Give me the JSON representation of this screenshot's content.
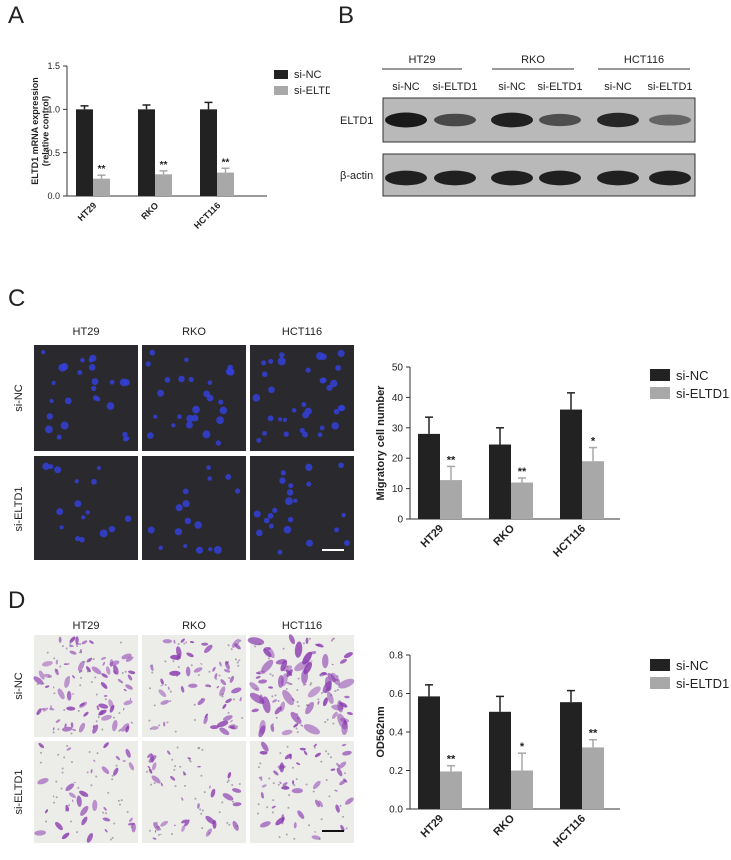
{
  "panels": {
    "A": "A",
    "B": "B",
    "C": "C",
    "D": "D"
  },
  "legend": {
    "si_nc": "si-NC",
    "si_eltd1": "si-ELTD1"
  },
  "colors": {
    "si_nc": "#222222",
    "si_eltd1": "#a8a8a8"
  },
  "blot": {
    "cell_lines": [
      "HT29",
      "RKO",
      "HCT116"
    ],
    "lane_labels": [
      "si-NC",
      "si-ELTD1",
      "si-NC",
      "si-ELTD1",
      "si-NC",
      "si-ELTD1"
    ],
    "row_labels": [
      "ELTD1",
      "β-actin"
    ],
    "eltd1_intensity": [
      1.0,
      0.6,
      0.95,
      0.55,
      0.9,
      0.35
    ],
    "actin_intensity": [
      0.95,
      0.95,
      0.95,
      0.95,
      0.95,
      0.95
    ]
  },
  "images": {
    "columns": [
      "HT29",
      "RKO",
      "HCT116"
    ],
    "rows": [
      "si-NC",
      "si-ELTD1"
    ]
  },
  "chart_data": [
    {
      "id": "A",
      "type": "bar",
      "categories": [
        "HT29",
        "RKO",
        "HCT116"
      ],
      "series": [
        {
          "name": "si-NC",
          "values": [
            1.0,
            1.0,
            1.0
          ],
          "errors": [
            0.04,
            0.05,
            0.08
          ]
        },
        {
          "name": "si-ELTD1",
          "values": [
            0.2,
            0.25,
            0.27
          ],
          "errors": [
            0.04,
            0.04,
            0.05
          ]
        }
      ],
      "significance": [
        "",
        "",
        "",
        "**",
        "**",
        "**"
      ],
      "ylabel": "ELTD1 mRNA expression\n(relative control)",
      "ylim": [
        0,
        1.5
      ],
      "yticks": [
        "0.0",
        "0.5",
        "1.0",
        "1.5"
      ],
      "legend": "top-right"
    },
    {
      "id": "C",
      "type": "bar",
      "categories": [
        "HT29",
        "RKO",
        "HCT116"
      ],
      "series": [
        {
          "name": "si-NC",
          "values": [
            28,
            24.5,
            36
          ],
          "errors": [
            5.5,
            5.5,
            5.5
          ]
        },
        {
          "name": "si-ELTD1",
          "values": [
            12.8,
            12,
            19
          ],
          "errors": [
            4.5,
            1.5,
            4.5
          ]
        }
      ],
      "significance": [
        "**",
        "**",
        "*"
      ],
      "ylabel": "Migratory cell number",
      "ylim": [
        0,
        50
      ],
      "yticks": [
        "0",
        "10",
        "20",
        "30",
        "40",
        "50"
      ],
      "legend": "top-right"
    },
    {
      "id": "D",
      "type": "bar",
      "categories": [
        "HT29",
        "RKO",
        "HCT116"
      ],
      "series": [
        {
          "name": "si-NC",
          "values": [
            0.585,
            0.505,
            0.555
          ],
          "errors": [
            0.06,
            0.08,
            0.06
          ]
        },
        {
          "name": "si-ELTD1",
          "values": [
            0.195,
            0.2,
            0.32
          ],
          "errors": [
            0.03,
            0.09,
            0.04
          ]
        }
      ],
      "significance": [
        "**",
        "*",
        "**"
      ],
      "ylabel": "OD562nm",
      "ylim": [
        0,
        0.8
      ],
      "yticks": [
        "0.0",
        "0.2",
        "0.4",
        "0.6",
        "0.8"
      ],
      "legend": "top-right"
    }
  ]
}
